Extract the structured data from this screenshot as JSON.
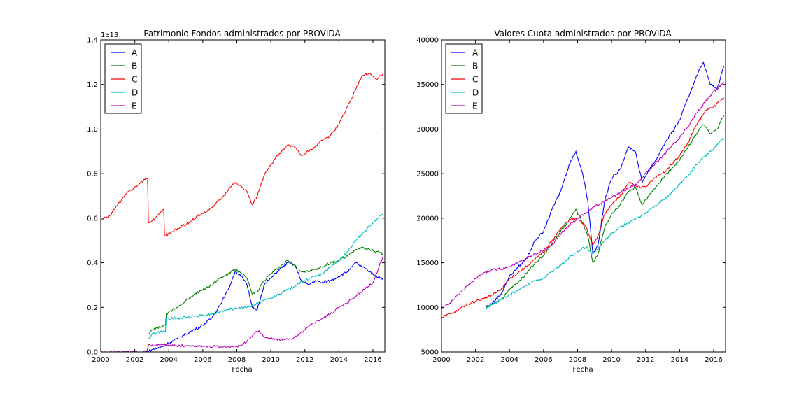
{
  "chart_data": [
    {
      "type": "line",
      "title": "Patrimonio Fondos administrados por PROVIDA",
      "xlabel": "Fecha",
      "ylabel": "",
      "y_offset_label": "1e13",
      "xlim": [
        2000,
        2016.7
      ],
      "ylim": [
        0,
        1.4
      ],
      "x_ticks": [
        "2000",
        "2002",
        "2004",
        "2006",
        "2008",
        "2010",
        "2012",
        "2014",
        "2016"
      ],
      "y_ticks": [
        "0.0",
        "0.2",
        "0.4",
        "0.6",
        "0.8",
        "1.0",
        "1.2",
        "1.4"
      ],
      "legend": "top-left",
      "grid": false,
      "series": [
        {
          "name": "A",
          "color": "#0000ff",
          "x": [
            2002.6,
            2003.0,
            2003.5,
            2004.0,
            2004.5,
            2005.0,
            2005.5,
            2006.0,
            2006.5,
            2007.0,
            2007.5,
            2007.9,
            2008.3,
            2008.6,
            2008.9,
            2009.2,
            2009.6,
            2010.0,
            2010.5,
            2011.0,
            2011.4,
            2011.8,
            2012.2,
            2012.6,
            2013.0,
            2013.5,
            2014.0,
            2014.5,
            2015.0,
            2015.4,
            2015.8,
            2016.2,
            2016.6
          ],
          "values": [
            0.0,
            0.01,
            0.02,
            0.04,
            0.06,
            0.08,
            0.1,
            0.12,
            0.15,
            0.21,
            0.28,
            0.36,
            0.34,
            0.3,
            0.2,
            0.19,
            0.3,
            0.33,
            0.37,
            0.4,
            0.39,
            0.32,
            0.3,
            0.32,
            0.31,
            0.32,
            0.34,
            0.36,
            0.4,
            0.38,
            0.36,
            0.34,
            0.33
          ]
        },
        {
          "name": "B",
          "color": "#008000",
          "x": [
            2002.8,
            2003.0,
            2003.5,
            2003.8,
            2003.85,
            2004.5,
            2005.0,
            2005.5,
            2006.0,
            2006.5,
            2007.0,
            2007.5,
            2007.9,
            2008.3,
            2008.6,
            2008.9,
            2009.2,
            2009.6,
            2010.0,
            2010.5,
            2011.0,
            2011.4,
            2011.8,
            2012.2,
            2012.6,
            2013.0,
            2013.5,
            2014.0,
            2014.5,
            2015.0,
            2015.4,
            2015.8,
            2016.2,
            2016.6
          ],
          "values": [
            0.08,
            0.1,
            0.11,
            0.12,
            0.17,
            0.2,
            0.23,
            0.26,
            0.28,
            0.3,
            0.33,
            0.35,
            0.37,
            0.35,
            0.33,
            0.26,
            0.27,
            0.32,
            0.35,
            0.38,
            0.41,
            0.39,
            0.36,
            0.36,
            0.37,
            0.38,
            0.4,
            0.41,
            0.43,
            0.46,
            0.47,
            0.46,
            0.45,
            0.44
          ]
        },
        {
          "name": "C",
          "color": "#ff0000",
          "x": [
            2000.0,
            2000.5,
            2001.0,
            2001.5,
            2002.0,
            2002.5,
            2002.75,
            2002.8,
            2003.2,
            2003.7,
            2003.75,
            2004.2,
            2004.7,
            2005.2,
            2005.7,
            2006.2,
            2006.7,
            2007.2,
            2007.6,
            2007.9,
            2008.3,
            2008.6,
            2008.9,
            2009.2,
            2009.6,
            2010.0,
            2010.5,
            2011.0,
            2011.4,
            2011.8,
            2012.2,
            2012.6,
            2013.0,
            2013.5,
            2014.0,
            2014.5,
            2015.0,
            2015.4,
            2015.8,
            2016.2,
            2016.6
          ],
          "values": [
            0.59,
            0.61,
            0.66,
            0.71,
            0.74,
            0.77,
            0.78,
            0.58,
            0.6,
            0.64,
            0.52,
            0.54,
            0.56,
            0.58,
            0.61,
            0.63,
            0.66,
            0.7,
            0.74,
            0.76,
            0.74,
            0.72,
            0.66,
            0.7,
            0.79,
            0.84,
            0.89,
            0.93,
            0.92,
            0.88,
            0.9,
            0.92,
            0.95,
            0.97,
            1.02,
            1.1,
            1.18,
            1.24,
            1.25,
            1.22,
            1.25
          ]
        },
        {
          "name": "D",
          "color": "#00bfbf",
          "x": [
            2002.8,
            2003.0,
            2003.5,
            2003.8,
            2003.85,
            2004.5,
            2005.0,
            2005.5,
            2006.0,
            2006.5,
            2007.0,
            2007.5,
            2008.0,
            2008.5,
            2009.0,
            2009.5,
            2010.0,
            2010.5,
            2011.0,
            2011.5,
            2012.0,
            2012.5,
            2013.0,
            2013.5,
            2014.0,
            2014.5,
            2015.0,
            2015.5,
            2016.0,
            2016.6
          ],
          "values": [
            0.06,
            0.08,
            0.09,
            0.09,
            0.15,
            0.15,
            0.155,
            0.16,
            0.165,
            0.17,
            0.18,
            0.19,
            0.195,
            0.2,
            0.21,
            0.23,
            0.24,
            0.26,
            0.28,
            0.3,
            0.32,
            0.34,
            0.35,
            0.38,
            0.41,
            0.45,
            0.5,
            0.54,
            0.58,
            0.62
          ]
        },
        {
          "name": "E",
          "color": "#bf00bf",
          "x": [
            2000.0,
            2002.7,
            2002.8,
            2003.5,
            2004.0,
            2005.0,
            2006.0,
            2007.0,
            2007.5,
            2008.0,
            2008.5,
            2009.0,
            2009.3,
            2009.6,
            2010.0,
            2010.5,
            2011.0,
            2011.5,
            2012.0,
            2012.5,
            2013.0,
            2013.5,
            2014.0,
            2014.5,
            2015.0,
            2015.5,
            2016.0,
            2016.6
          ],
          "values": [
            0.0,
            0.0,
            0.03,
            0.032,
            0.03,
            0.028,
            0.026,
            0.024,
            0.022,
            0.024,
            0.04,
            0.08,
            0.095,
            0.07,
            0.06,
            0.055,
            0.055,
            0.07,
            0.1,
            0.13,
            0.15,
            0.17,
            0.2,
            0.22,
            0.25,
            0.28,
            0.31,
            0.43
          ]
        }
      ]
    },
    {
      "type": "line",
      "title": "Valores Cuota administrados por PROVIDA",
      "xlabel": "Fecha",
      "ylabel": "",
      "xlim": [
        2000,
        2016.7
      ],
      "ylim": [
        5000,
        40000
      ],
      "x_ticks": [
        "2000",
        "2002",
        "2004",
        "2006",
        "2008",
        "2010",
        "2012",
        "2014",
        "2016"
      ],
      "y_ticks": [
        "5000",
        "10000",
        "15000",
        "20000",
        "25000",
        "30000",
        "35000",
        "40000"
      ],
      "legend": "top-left",
      "grid": false,
      "series": [
        {
          "name": "A",
          "color": "#0000ff",
          "x": [
            2002.6,
            2003.0,
            2003.5,
            2004.0,
            2004.5,
            2005.0,
            2005.5,
            2006.0,
            2006.5,
            2007.0,
            2007.5,
            2007.9,
            2008.3,
            2008.6,
            2008.9,
            2009.2,
            2009.6,
            2010.0,
            2010.5,
            2011.0,
            2011.4,
            2011.8,
            2012.2,
            2012.6,
            2013.0,
            2013.5,
            2014.0,
            2014.5,
            2015.0,
            2015.4,
            2015.8,
            2016.2,
            2016.6
          ],
          "values": [
            10000,
            10500,
            11500,
            13500,
            14500,
            15500,
            17500,
            18500,
            21000,
            23000,
            26000,
            27500,
            25000,
            22000,
            16000,
            17000,
            22000,
            24500,
            25500,
            28000,
            27500,
            24000,
            25500,
            26500,
            28000,
            29500,
            31000,
            33500,
            36000,
            37500,
            35000,
            34500,
            37000
          ]
        },
        {
          "name": "B",
          "color": "#008000",
          "x": [
            2002.6,
            2003.0,
            2003.5,
            2004.0,
            2004.5,
            2005.0,
            2005.5,
            2006.0,
            2006.5,
            2007.0,
            2007.5,
            2007.9,
            2008.3,
            2008.6,
            2008.9,
            2009.2,
            2009.6,
            2010.0,
            2010.5,
            2011.0,
            2011.4,
            2011.8,
            2012.2,
            2012.6,
            2013.0,
            2013.5,
            2014.0,
            2014.5,
            2015.0,
            2015.4,
            2015.8,
            2016.2,
            2016.6
          ],
          "values": [
            10000,
            10300,
            10900,
            12000,
            12800,
            13800,
            15000,
            15800,
            17200,
            18500,
            19800,
            21000,
            19500,
            18000,
            15000,
            16000,
            19000,
            20500,
            21500,
            23000,
            23500,
            21500,
            22500,
            23500,
            24500,
            25500,
            26500,
            28000,
            29500,
            30500,
            29500,
            30000,
            31500
          ]
        },
        {
          "name": "C",
          "color": "#ff0000",
          "x": [
            2000.0,
            2000.5,
            2001.0,
            2001.5,
            2002.0,
            2002.5,
            2003.0,
            2003.5,
            2004.0,
            2004.5,
            2005.0,
            2005.5,
            2006.0,
            2006.5,
            2007.0,
            2007.5,
            2008.0,
            2008.5,
            2008.9,
            2009.2,
            2009.6,
            2010.0,
            2010.5,
            2011.0,
            2011.5,
            2012.0,
            2012.5,
            2013.0,
            2013.5,
            2014.0,
            2014.5,
            2015.0,
            2015.5,
            2016.0,
            2016.6
          ],
          "values": [
            8800,
            9300,
            9700,
            10300,
            10700,
            11000,
            11400,
            12000,
            13200,
            13900,
            14600,
            15400,
            16200,
            17500,
            18800,
            19800,
            20000,
            19000,
            17000,
            18000,
            20500,
            21500,
            22500,
            24000,
            23500,
            23500,
            24500,
            25000,
            26000,
            27000,
            28500,
            30500,
            32000,
            32500,
            33500
          ]
        },
        {
          "name": "D",
          "color": "#00bfbf",
          "x": [
            2002.6,
            2003.0,
            2003.5,
            2004.0,
            2004.5,
            2005.0,
            2005.5,
            2006.0,
            2006.5,
            2007.0,
            2007.5,
            2008.0,
            2008.5,
            2008.9,
            2009.2,
            2009.6,
            2010.0,
            2010.5,
            2011.0,
            2011.5,
            2012.0,
            2012.5,
            2013.0,
            2013.5,
            2014.0,
            2014.5,
            2015.0,
            2015.5,
            2016.0,
            2016.6
          ],
          "values": [
            10000,
            10300,
            10900,
            11400,
            11900,
            12500,
            13000,
            13300,
            14000,
            14700,
            15600,
            16300,
            16800,
            16000,
            16500,
            17500,
            18300,
            19000,
            19500,
            20000,
            20500,
            21300,
            22000,
            22800,
            23800,
            24800,
            26000,
            27000,
            27800,
            29000
          ]
        },
        {
          "name": "E",
          "color": "#bf00bf",
          "x": [
            2000.0,
            2000.5,
            2001.0,
            2001.5,
            2002.0,
            2002.5,
            2003.0,
            2003.5,
            2004.0,
            2004.5,
            2005.0,
            2005.5,
            2006.0,
            2006.5,
            2007.0,
            2007.5,
            2008.0,
            2008.5,
            2009.0,
            2009.5,
            2010.0,
            2010.5,
            2011.0,
            2011.5,
            2012.0,
            2012.5,
            2013.0,
            2013.5,
            2014.0,
            2014.5,
            2015.0,
            2015.5,
            2016.0,
            2016.6
          ],
          "values": [
            9900,
            10500,
            11400,
            12400,
            13200,
            13900,
            14200,
            14300,
            14600,
            15000,
            15500,
            16000,
            16400,
            17000,
            18200,
            19200,
            20000,
            20600,
            21300,
            21800,
            22300,
            22900,
            23400,
            23900,
            25000,
            25900,
            27000,
            28000,
            29000,
            30300,
            31800,
            33000,
            34200,
            35200
          ]
        }
      ]
    }
  ]
}
